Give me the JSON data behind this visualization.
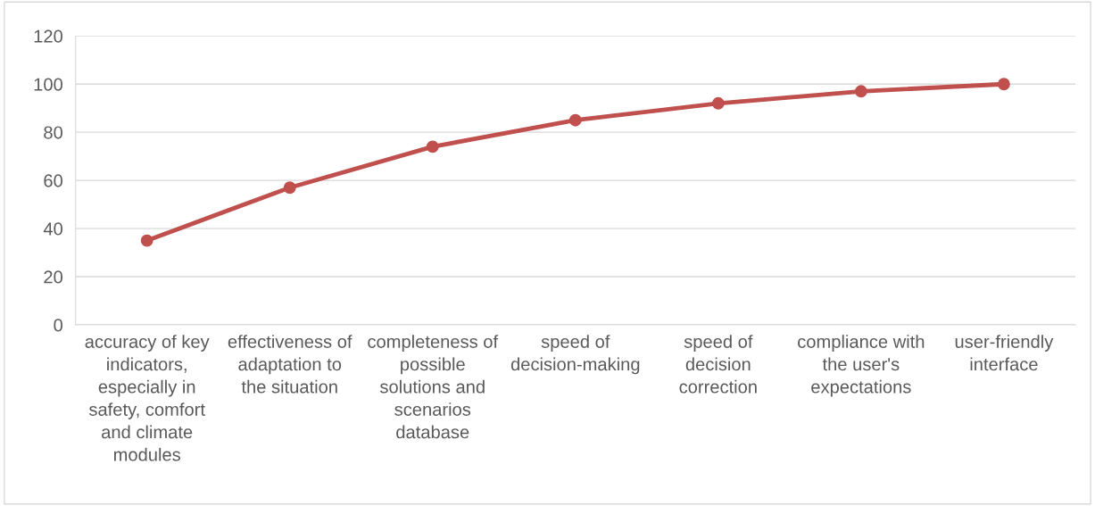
{
  "chart_data": {
    "type": "line",
    "categories": [
      "accuracy of key indicators, especially in safety, comfort and climate modules",
      "effectiveness of adaptation to the situation",
      "completeness of possible solutions and scenarios database",
      "speed of decision-making",
      "speed of decision correction",
      "compliance with the user's expectations",
      "user-friendly interface"
    ],
    "series": [
      {
        "color": "#c0504d",
        "values": [
          35,
          57,
          74,
          85,
          92,
          97,
          100
        ]
      }
    ],
    "ylim": [
      0,
      120
    ],
    "yticks": [
      0,
      20,
      40,
      60,
      80,
      100,
      120
    ],
    "grid": "y",
    "marker": "circle",
    "line_style": "solid"
  }
}
